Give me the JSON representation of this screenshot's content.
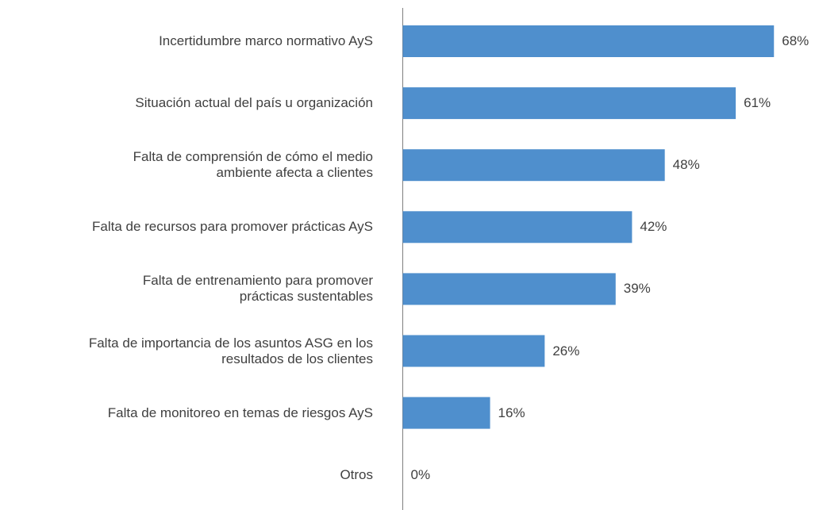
{
  "chart_data": {
    "type": "barh",
    "categories": [
      "Incertidumbre marco normativo AyS",
      "Situación actual del país u organización",
      "Falta de comprensión de cómo el medio\nambiente afecta a clientes",
      "Falta de recursos para promover prácticas AyS",
      "Falta de entrenamiento para promover\nprácticas sustentables",
      "Falta de importancia de los asuntos ASG en los\nresultados de los clientes",
      "Falta de monitoreo en temas de riesgos AyS",
      "Otros"
    ],
    "values": [
      68,
      61,
      48,
      42,
      39,
      26,
      16,
      0
    ],
    "value_labels": [
      "68%",
      "61%",
      "48%",
      "42%",
      "39%",
      "26%",
      "16%",
      "0%"
    ],
    "color": "#4f8fcd",
    "xlim": [
      0,
      70
    ]
  }
}
